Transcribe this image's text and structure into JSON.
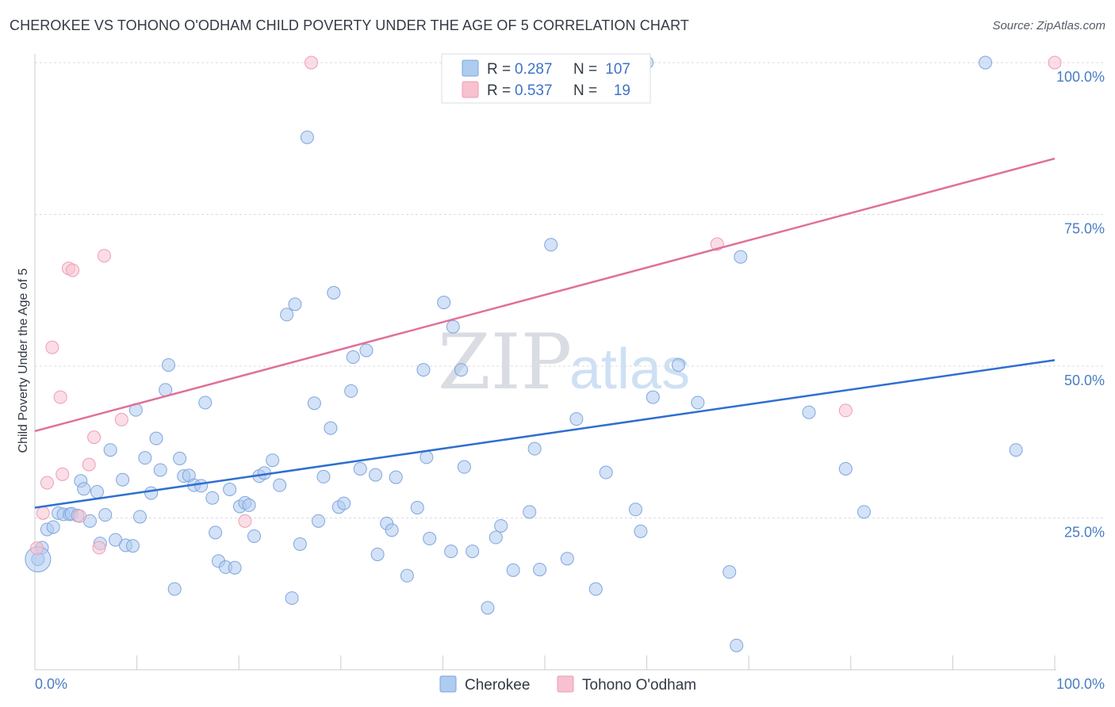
{
  "title": "CHEROKEE VS TOHONO O'ODHAM CHILD POVERTY UNDER THE AGE OF 5 CORRELATION CHART",
  "source": "Source: ZipAtlas.com",
  "watermark": {
    "zip": "ZIP",
    "atlas": "atlas"
  },
  "colors": {
    "cherokee_fill": "#aecbf0",
    "cherokee_stroke": "#7fa6dc",
    "cherokee_line": "#2f6fd0",
    "tohono_fill": "#f7c1d0",
    "tohono_stroke": "#ee9db5",
    "tohono_line": "#e07098",
    "grid": "#d8dce2",
    "axis": "#c8cdd4"
  },
  "legend": {
    "rows": [
      {
        "r_label": "R =",
        "r_value": "0.287",
        "n_label": "N =",
        "n_value": "107"
      },
      {
        "r_label": "R =",
        "r_value": "0.537",
        "n_label": "N =",
        "n_value": "19"
      }
    ]
  },
  "chart_data": {
    "type": "scatter",
    "ylabel": "Child Poverty Under the Age of 5",
    "xlim": [
      0,
      100
    ],
    "ylim": [
      0,
      100
    ],
    "x_tick_labels": [
      "0.0%",
      "100.0%"
    ],
    "y_tick_labels": [
      {
        "value": 25,
        "label": "25.0%"
      },
      {
        "value": 50,
        "label": "50.0%"
      },
      {
        "value": 75,
        "label": "75.0%"
      },
      {
        "value": 100,
        "label": "100.0%"
      }
    ],
    "legend_placement": "bottom-center",
    "series": [
      {
        "name": "Cherokee",
        "trend": {
          "x0": 0,
          "y0": 26.7,
          "x1": 100,
          "y1": 51
        },
        "points": [
          [
            0.3,
            18.2
          ],
          [
            0.7,
            20.1
          ],
          [
            1.2,
            23.1
          ],
          [
            1.8,
            23.5
          ],
          [
            2.3,
            25.8
          ],
          [
            2.8,
            25.6
          ],
          [
            3.4,
            25.6
          ],
          [
            3.6,
            25.7
          ],
          [
            4.2,
            25.4
          ],
          [
            4.5,
            31.1
          ],
          [
            4.8,
            29.8
          ],
          [
            5.4,
            24.5
          ],
          [
            6.1,
            29.3
          ],
          [
            6.4,
            20.8
          ],
          [
            6.9,
            25.5
          ],
          [
            7.4,
            36.2
          ],
          [
            7.9,
            21.4
          ],
          [
            8.6,
            31.3
          ],
          [
            8.9,
            20.5
          ],
          [
            9.6,
            20.4
          ],
          [
            9.9,
            42.8
          ],
          [
            10.3,
            25.2
          ],
          [
            10.8,
            34.9
          ],
          [
            11.4,
            29.1
          ],
          [
            11.9,
            38.1
          ],
          [
            12.3,
            32.9
          ],
          [
            12.8,
            46.1
          ],
          [
            13.1,
            50.2
          ],
          [
            13.7,
            13.3
          ],
          [
            14.2,
            34.8
          ],
          [
            14.6,
            31.9
          ],
          [
            15.1,
            32.0
          ],
          [
            15.6,
            30.4
          ],
          [
            16.3,
            30.3
          ],
          [
            16.7,
            44.0
          ],
          [
            17.4,
            28.3
          ],
          [
            17.7,
            22.6
          ],
          [
            18.0,
            17.9
          ],
          [
            18.7,
            16.9
          ],
          [
            19.1,
            29.7
          ],
          [
            19.6,
            16.8
          ],
          [
            20.1,
            26.9
          ],
          [
            20.6,
            27.5
          ],
          [
            21.0,
            27.1
          ],
          [
            21.5,
            22.0
          ],
          [
            22.0,
            31.9
          ],
          [
            22.5,
            32.4
          ],
          [
            23.3,
            34.5
          ],
          [
            24.0,
            30.4
          ],
          [
            24.7,
            58.5
          ],
          [
            25.2,
            11.8
          ],
          [
            25.5,
            60.2
          ],
          [
            26.0,
            20.7
          ],
          [
            26.7,
            87.7
          ],
          [
            27.4,
            43.9
          ],
          [
            27.8,
            24.5
          ],
          [
            28.3,
            31.8
          ],
          [
            29.0,
            39.8
          ],
          [
            29.3,
            62.1
          ],
          [
            29.8,
            26.8
          ],
          [
            30.3,
            27.4
          ],
          [
            31.2,
            51.5
          ],
          [
            31.0,
            45.9
          ],
          [
            31.9,
            33.1
          ],
          [
            32.5,
            52.6
          ],
          [
            33.4,
            32.1
          ],
          [
            33.6,
            19.0
          ],
          [
            34.5,
            24.1
          ],
          [
            35.0,
            23.0
          ],
          [
            35.4,
            31.7
          ],
          [
            36.5,
            15.5
          ],
          [
            37.5,
            26.7
          ],
          [
            38.1,
            49.4
          ],
          [
            38.7,
            21.6
          ],
          [
            38.4,
            35.0
          ],
          [
            40.1,
            60.5
          ],
          [
            40.8,
            19.5
          ],
          [
            41.0,
            56.5
          ],
          [
            41.8,
            49.4
          ],
          [
            42.1,
            33.4
          ],
          [
            42.9,
            19.5
          ],
          [
            44.4,
            10.2
          ],
          [
            45.2,
            21.8
          ],
          [
            45.7,
            23.7
          ],
          [
            46.9,
            16.4
          ],
          [
            48.5,
            26.0
          ],
          [
            49.0,
            36.4
          ],
          [
            49.5,
            16.5
          ],
          [
            50.6,
            70.0
          ],
          [
            52.2,
            18.3
          ],
          [
            53.1,
            41.3
          ],
          [
            55.0,
            13.3
          ],
          [
            56.0,
            32.5
          ],
          [
            58.9,
            26.4
          ],
          [
            59.4,
            22.8
          ],
          [
            60.0,
            100.0
          ],
          [
            60.6,
            44.9
          ],
          [
            63.1,
            50.2
          ],
          [
            65.0,
            44.0
          ],
          [
            68.1,
            16.1
          ],
          [
            68.8,
            4.0
          ],
          [
            69.2,
            68.0
          ],
          [
            75.9,
            42.4
          ],
          [
            79.5,
            33.1
          ],
          [
            81.3,
            26.0
          ],
          [
            93.2,
            100.0
          ],
          [
            96.2,
            36.2
          ]
        ]
      },
      {
        "name": "Tohono O'odham",
        "trend": {
          "x0": 0,
          "y0": 39.3,
          "x1": 100,
          "y1": 84.2
        },
        "points": [
          [
            0.2,
            20.0
          ],
          [
            0.8,
            25.8
          ],
          [
            1.2,
            30.8
          ],
          [
            1.7,
            53.1
          ],
          [
            2.5,
            44.9
          ],
          [
            2.7,
            32.2
          ],
          [
            3.3,
            66.1
          ],
          [
            3.7,
            65.8
          ],
          [
            4.4,
            25.3
          ],
          [
            5.3,
            33.8
          ],
          [
            5.8,
            38.3
          ],
          [
            6.3,
            20.1
          ],
          [
            6.8,
            68.2
          ],
          [
            8.5,
            41.2
          ],
          [
            20.6,
            24.5
          ],
          [
            27.1,
            100.0
          ],
          [
            66.9,
            70.1
          ],
          [
            79.5,
            42.7
          ],
          [
            100.0,
            100.0
          ]
        ]
      }
    ]
  }
}
